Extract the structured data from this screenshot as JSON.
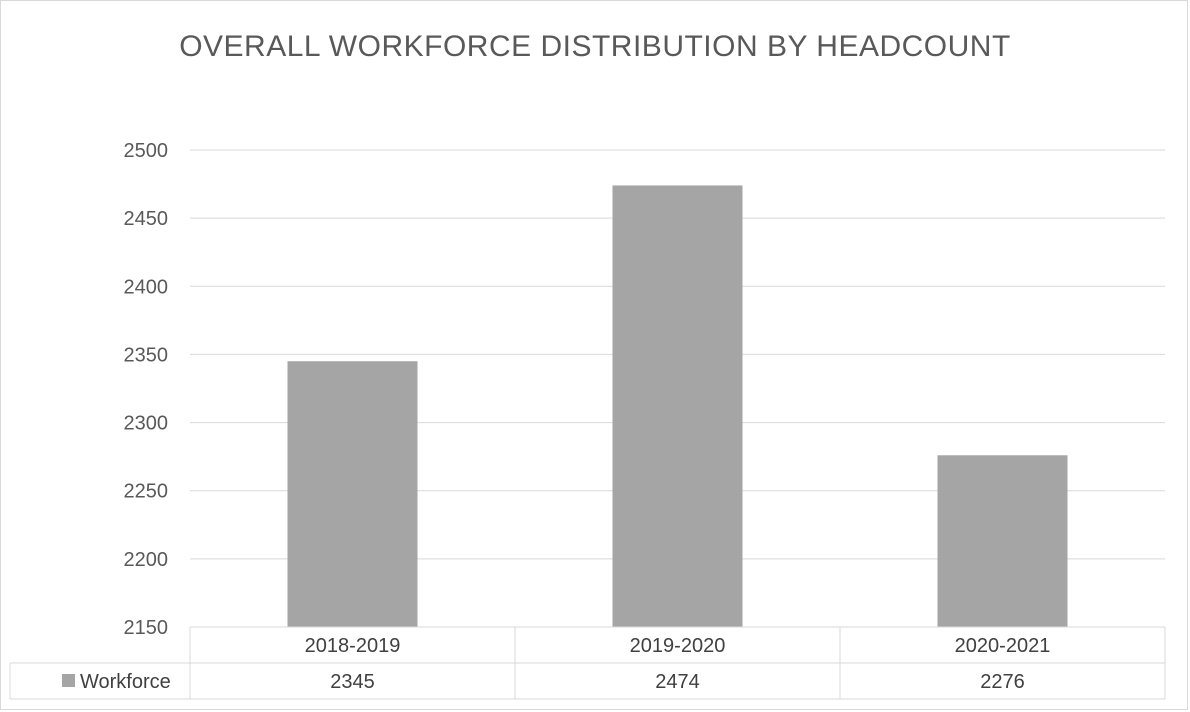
{
  "chart_data": {
    "type": "bar",
    "title": "OVERALL WORKFORCE DISTRIBUTION BY HEADCOUNT",
    "categories": [
      "2018-2019",
      "2019-2020",
      "2020-2021"
    ],
    "series": [
      {
        "name": "Workforce",
        "values": [
          2345,
          2474,
          2276
        ],
        "color": "#a5a5a5"
      }
    ],
    "ylim": [
      2150,
      2500
    ],
    "yticks": [
      2150,
      2200,
      2250,
      2300,
      2350,
      2400,
      2450,
      2500
    ],
    "xlabel": "",
    "ylabel": "",
    "grid": true,
    "legend": "data-table",
    "data_table": true
  }
}
